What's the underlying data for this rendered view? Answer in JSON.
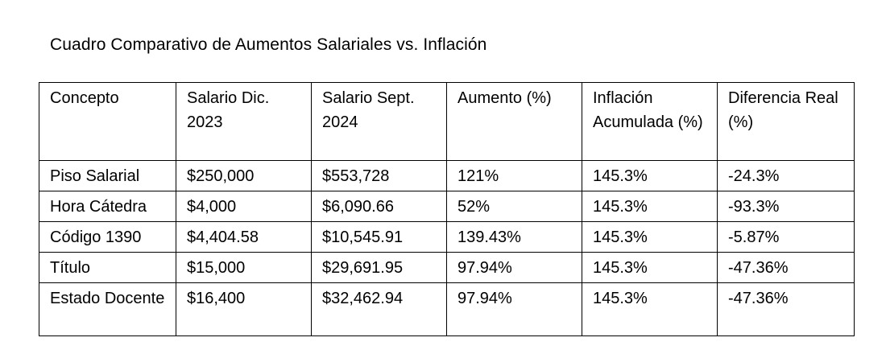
{
  "title": "Cuadro Comparativo de Aumentos Salariales vs. Inflación",
  "table": {
    "headers": [
      "Concepto",
      "Salario Dic. 2023",
      "Salario Sept. 2024",
      "Aumento (%)",
      "Inflación Acumulada (%)",
      "Diferencia Real (%)"
    ],
    "rows": [
      [
        "Piso Salarial",
        "$250,000",
        "$553,728",
        "121%",
        "145.3%",
        "-24.3%"
      ],
      [
        "Hora Cátedra",
        "$4,000",
        "$6,090.66",
        "52%",
        "145.3%",
        "-93.3%"
      ],
      [
        "Código 1390",
        "$4,404.58",
        "$10,545.91",
        "139.43%",
        "145.3%",
        "-5.87%"
      ],
      [
        "Título",
        "$15,000",
        "$29,691.95",
        "97.94%",
        "145.3%",
        "-47.36%"
      ],
      [
        "Estado Docente",
        "$16,400",
        "$32,462.94",
        "97.94%",
        "145.3%",
        "-47.36%"
      ]
    ]
  }
}
